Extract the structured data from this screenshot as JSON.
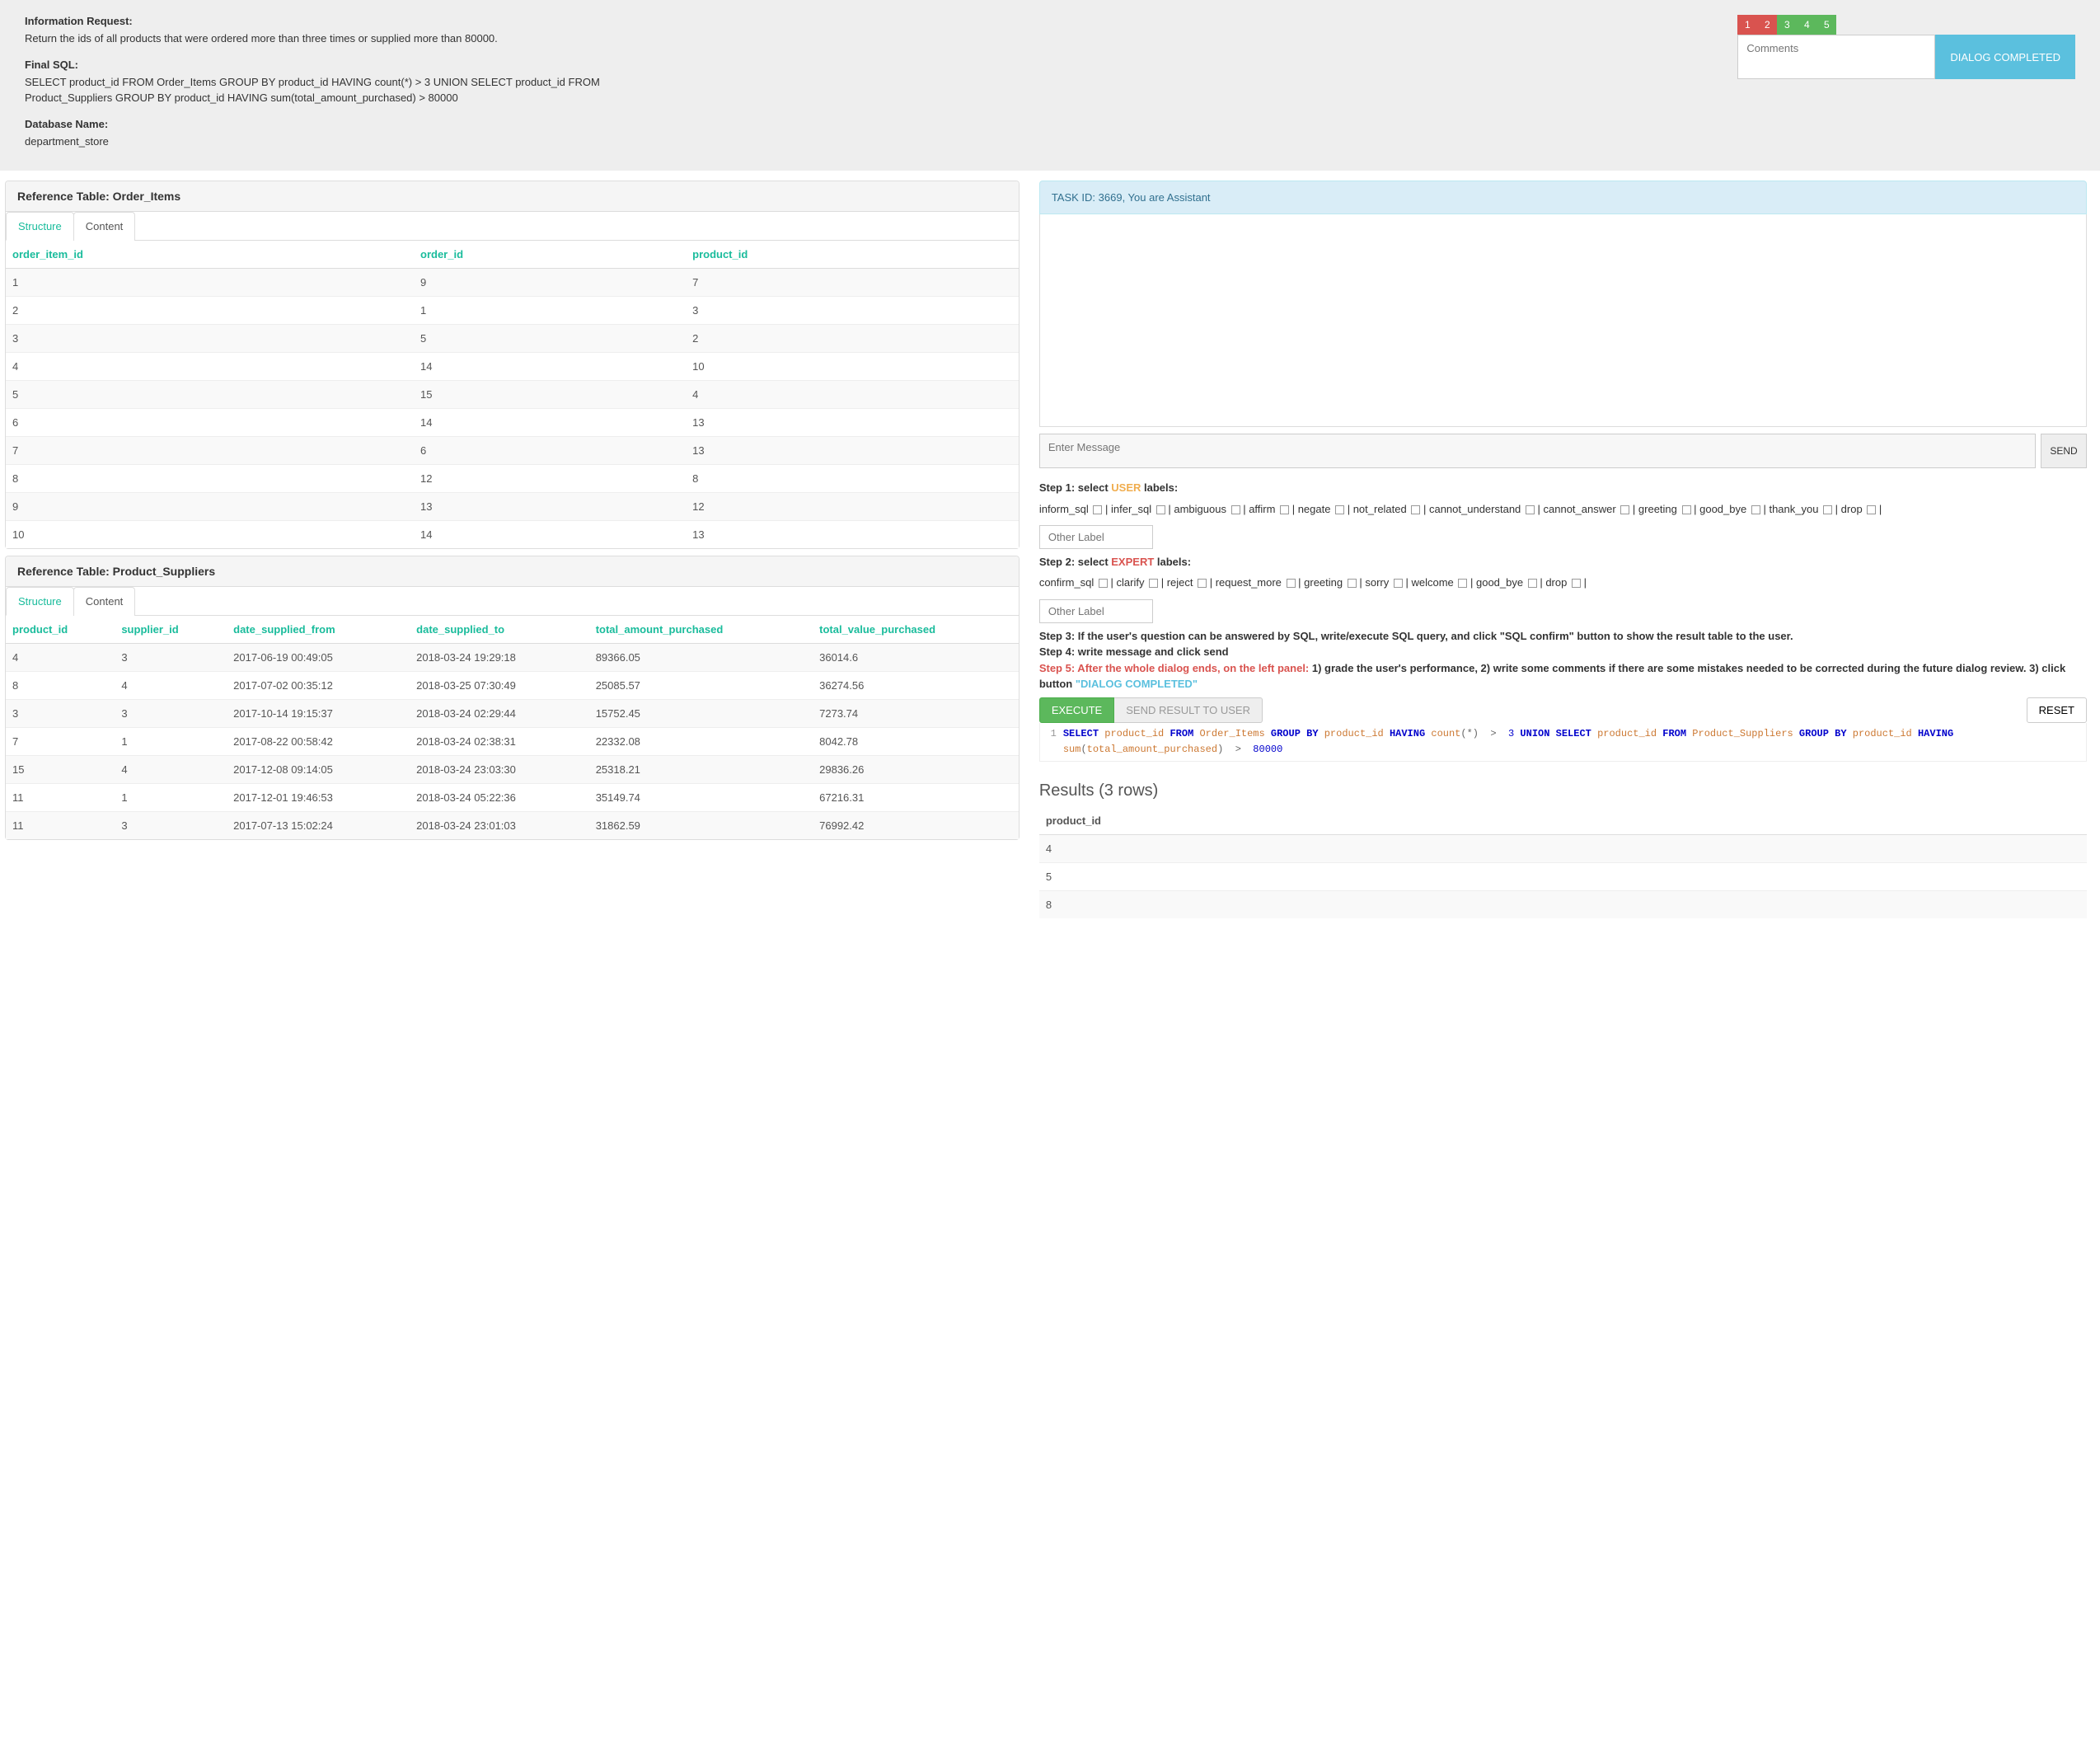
{
  "header": {
    "info_label": "Information Request:",
    "info_text": "Return the ids of all products that were ordered more than three times or supplied more than 80000.",
    "sql_label": "Final SQL:",
    "sql_text": "SELECT product_id FROM Order_Items GROUP BY product_id HAVING count(*) > 3 UNION SELECT product_id FROM Product_Suppliers GROUP BY product_id HAVING sum(total_amount_purchased) > 80000",
    "db_label": "Database Name:",
    "db_text": "department_store"
  },
  "grades": {
    "items": [
      "1",
      "2",
      "3",
      "4",
      "5"
    ],
    "colors": [
      "#d9534f",
      "#d9534f",
      "#5cb85c",
      "#5cb85c",
      "#5cb85c"
    ]
  },
  "comments_placeholder": "Comments",
  "dialog_completed": "DIALOG COMPLETED",
  "ref1": {
    "title": "Reference Table: Order_Items",
    "tab_structure": "Structure",
    "tab_content": "Content",
    "cols": [
      "order_item_id",
      "order_id",
      "product_id"
    ],
    "rows": [
      [
        "1",
        "9",
        "7"
      ],
      [
        "2",
        "1",
        "3"
      ],
      [
        "3",
        "5",
        "2"
      ],
      [
        "4",
        "14",
        "10"
      ],
      [
        "5",
        "15",
        "4"
      ],
      [
        "6",
        "14",
        "13"
      ],
      [
        "7",
        "6",
        "13"
      ],
      [
        "8",
        "12",
        "8"
      ],
      [
        "9",
        "13",
        "12"
      ],
      [
        "10",
        "14",
        "13"
      ]
    ]
  },
  "ref2": {
    "title": "Reference Table: Product_Suppliers",
    "tab_structure": "Structure",
    "tab_content": "Content",
    "cols": [
      "product_id",
      "supplier_id",
      "date_supplied_from",
      "date_supplied_to",
      "total_amount_purchased",
      "total_value_purchased"
    ],
    "rows": [
      [
        "4",
        "3",
        "2017-06-19 00:49:05",
        "2018-03-24 19:29:18",
        "89366.05",
        "36014.6"
      ],
      [
        "8",
        "4",
        "2017-07-02 00:35:12",
        "2018-03-25 07:30:49",
        "25085.57",
        "36274.56"
      ],
      [
        "3",
        "3",
        "2017-10-14 19:15:37",
        "2018-03-24 02:29:44",
        "15752.45",
        "7273.74"
      ],
      [
        "7",
        "1",
        "2017-08-22 00:58:42",
        "2018-03-24 02:38:31",
        "22332.08",
        "8042.78"
      ],
      [
        "15",
        "4",
        "2017-12-08 09:14:05",
        "2018-03-24 23:03:30",
        "25318.21",
        "29836.26"
      ],
      [
        "11",
        "1",
        "2017-12-01 19:46:53",
        "2018-03-24 05:22:36",
        "35149.74",
        "67216.31"
      ],
      [
        "11",
        "3",
        "2017-07-13 15:02:24",
        "2018-03-24 23:01:03",
        "31862.59",
        "76992.42"
      ]
    ]
  },
  "task_banner": "TASK ID: 3669, You are Assistant",
  "enter_message": "Enter Message",
  "send": "SEND",
  "steps": {
    "s1a": "Step 1: select ",
    "s1b": "USER",
    "s1c": " labels:",
    "user_labels": [
      "inform_sql",
      "infer_sql",
      "ambiguous",
      "affirm",
      "negate",
      "not_related",
      "cannot_understand",
      "cannot_answer",
      "greeting",
      "good_bye",
      "thank_you",
      "drop"
    ],
    "other_label": "Other Label",
    "s2a": "Step 2: select ",
    "s2b": "EXPERT",
    "s2c": " labels:",
    "expert_labels": [
      "confirm_sql",
      "clarify",
      "reject",
      "request_more",
      "greeting",
      "sorry",
      "welcome",
      "good_bye",
      "drop"
    ],
    "s3": "Step 3: If the user's question can be answered by SQL, write/execute SQL query, and click \"SQL confirm\" button to show the result table to the user.",
    "s4": "Step 4: write message and click send",
    "s5a": "Step 5: After the whole dialog ends, on the left panel: ",
    "s5b": "1) grade the user's performance, 2) write some comments if there are some mistakes needed to be corrected during the future dialog review. 3) click button ",
    "s5c": "\"DIALOG COMPLETED\""
  },
  "execute": "EXECUTE",
  "send_result": "SEND RESULT TO USER",
  "reset": "RESET",
  "results_title": "Results (3 rows)",
  "results": {
    "cols": [
      "product_id"
    ],
    "rows": [
      [
        "4"
      ],
      [
        "5"
      ],
      [
        "8"
      ]
    ]
  }
}
